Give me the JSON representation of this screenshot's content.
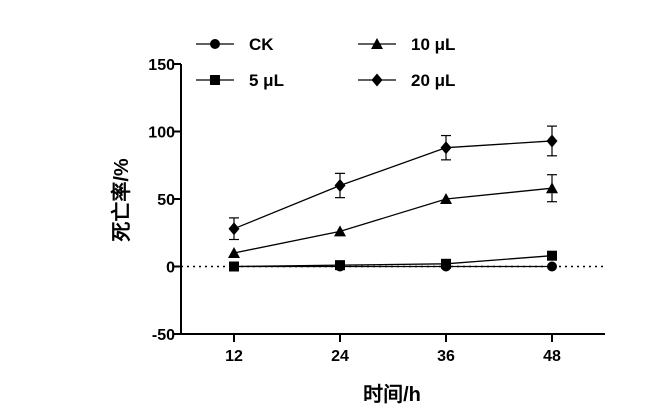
{
  "chart_data": {
    "type": "line",
    "title": "",
    "xlabel": "时间/h",
    "ylabel": "死亡率/%",
    "x": [
      12,
      24,
      36,
      48
    ],
    "xlim": [
      6,
      54
    ],
    "ylim": [
      -50,
      150
    ],
    "y_ticks": [
      -50,
      0,
      50,
      100,
      150
    ],
    "x_tick_labels": [
      "12",
      "24",
      "36",
      "48"
    ],
    "y_tick_labels": [
      "-50",
      "0",
      "50",
      "100",
      "150"
    ],
    "grid": false,
    "reference_line": {
      "y": 0,
      "style": "dotted"
    },
    "legend_placement": "top",
    "series": [
      {
        "name": "CK",
        "marker": "circle",
        "values": [
          0,
          0,
          0,
          0
        ],
        "errors": [
          0,
          0,
          0,
          0
        ]
      },
      {
        "name": "5 μL",
        "marker": "square",
        "values": [
          0,
          1,
          2,
          8
        ],
        "errors": [
          0,
          0,
          0,
          0
        ]
      },
      {
        "name": "10 μL",
        "marker": "triangle",
        "values": [
          10,
          26,
          50,
          58
        ],
        "errors": [
          0,
          0,
          0,
          10
        ]
      },
      {
        "name": "20 μL",
        "marker": "diamond",
        "values": [
          28,
          60,
          88,
          93
        ],
        "errors": [
          8,
          9,
          9,
          11
        ]
      }
    ]
  }
}
